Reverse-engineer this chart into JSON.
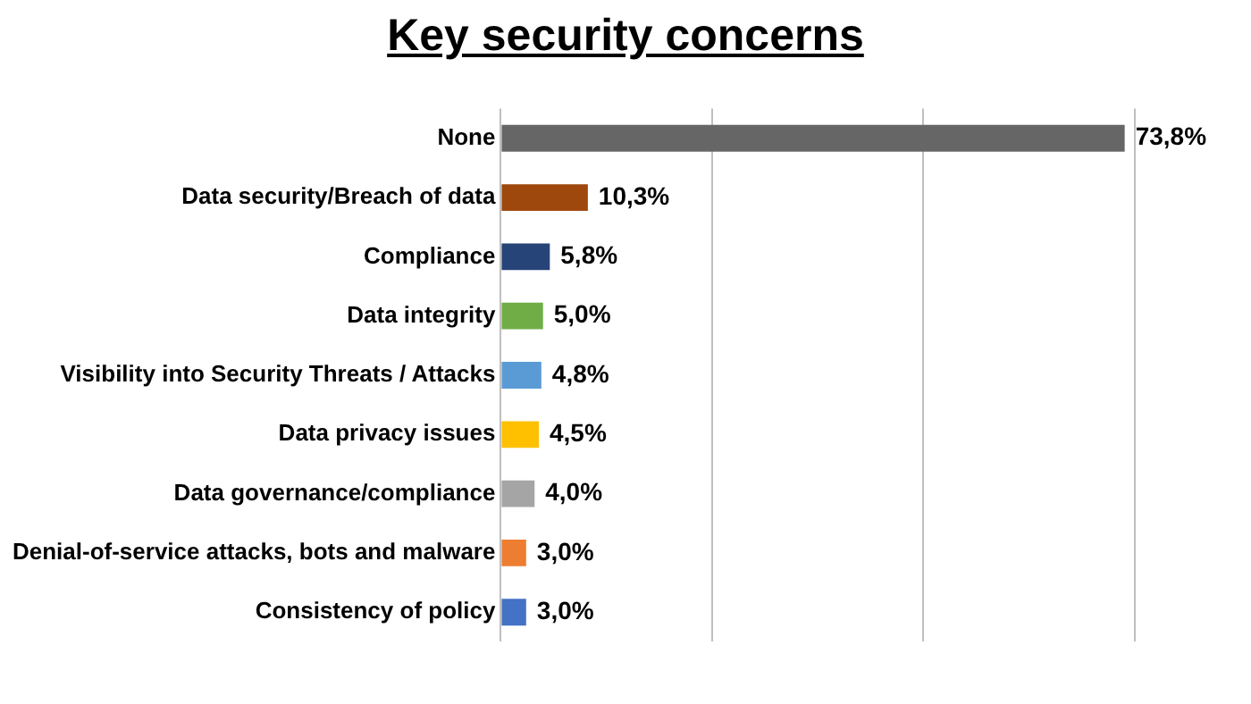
{
  "chart_data": {
    "type": "bar",
    "orientation": "horizontal",
    "title": "Key security concerns",
    "categories": [
      "None",
      "Data security/Breach of data",
      "Compliance",
      "Data integrity",
      "Visibility into Security Threats / Attacks",
      "Data privacy issues",
      "Data governance/compliance",
      "Denial-of-service attacks, bots and malware",
      "Consistency of policy"
    ],
    "values": [
      73.8,
      10.3,
      5.8,
      5.0,
      4.8,
      4.5,
      4.0,
      3.0,
      3.0
    ],
    "colors": [
      "#666666",
      "#9e480e",
      "#264478",
      "#70ad47",
      "#5b9bd5",
      "#ffc000",
      "#a5a5a5",
      "#ed7d31",
      "#4472c4"
    ],
    "value_labels": [
      "73,8%",
      "10,3%",
      "5,8%",
      "5,0%",
      "4,8%",
      "4,5%",
      "4,0%",
      "3,0%",
      "3,0%"
    ],
    "xlim": [
      0,
      75
    ],
    "xticks": [
      {
        "value": 0,
        "label": null
      },
      {
        "value": 25,
        "label": null
      },
      {
        "value": 50,
        "label": null
      },
      {
        "value": 75,
        "label": null
      }
    ],
    "grid": "x",
    "tick_labels": "y",
    "legend": false
  }
}
